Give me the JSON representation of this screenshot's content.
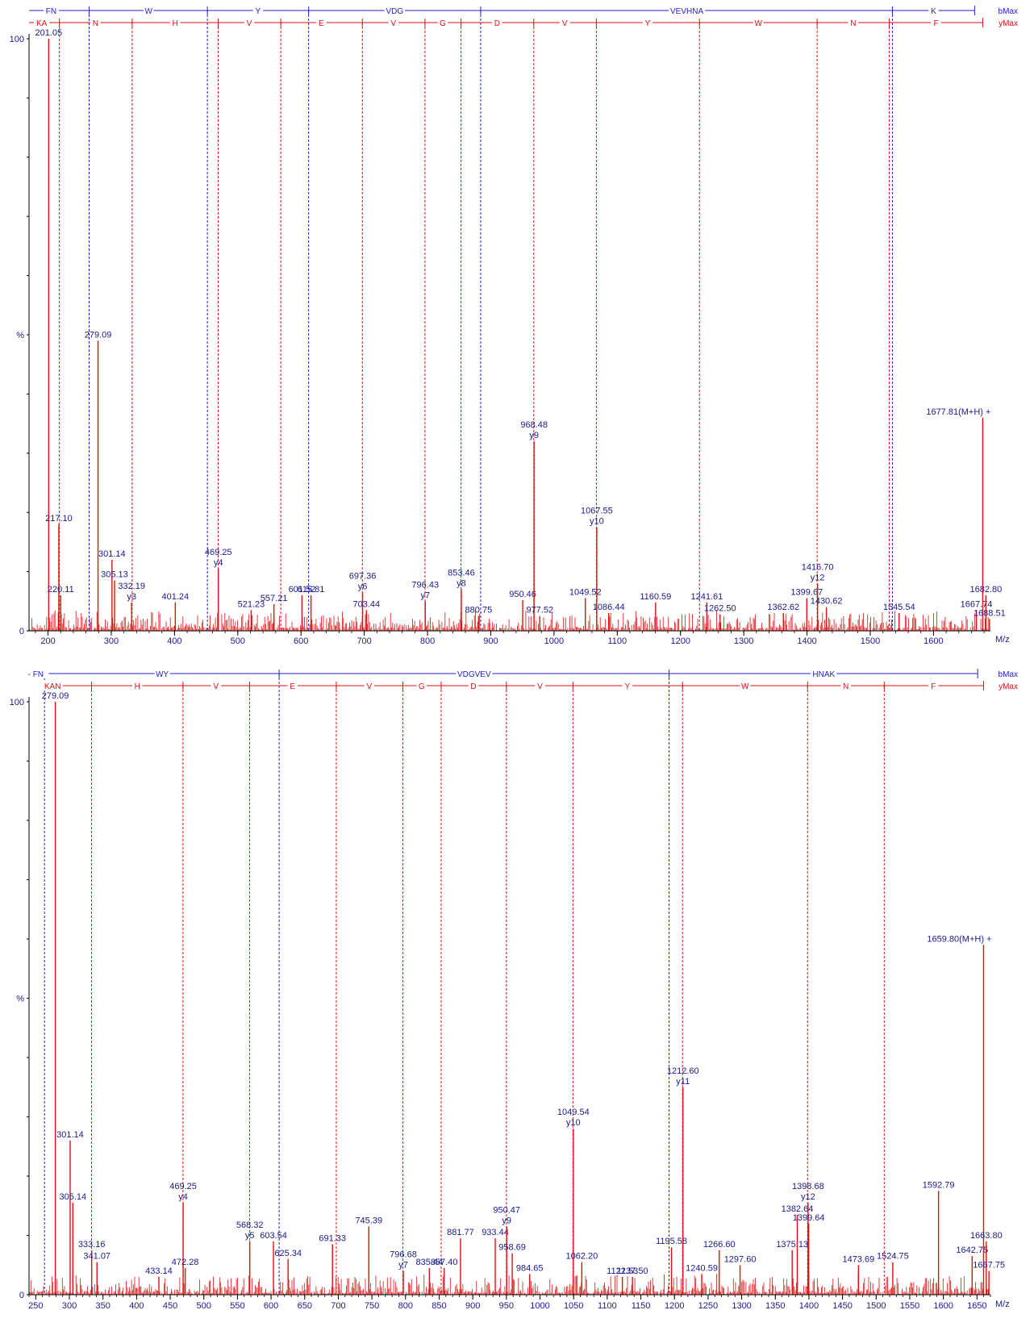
{
  "chart_data": [
    {
      "type": "bar",
      "xlabel": "M/z",
      "ylabel": "%",
      "xlim": [
        170,
        1690
      ],
      "ylim": [
        0,
        100
      ],
      "x_ticks": [
        200,
        300,
        400,
        500,
        600,
        700,
        800,
        900,
        1000,
        1100,
        1200,
        1300,
        1400,
        1500,
        1600
      ],
      "y_ticks": [
        {
          "value": 100,
          "label": "100"
        },
        {
          "value": 50,
          "label": "%"
        },
        {
          "value": 0,
          "label": "0"
        }
      ],
      "ladders": [
        {
          "name": "bMax",
          "color": "#2222cc",
          "start": 170,
          "end": 1665,
          "boundaries": [
            265,
            452,
            612,
            884,
            1535
          ],
          "residues": [
            {
              "x": 205,
              "label": "FN"
            },
            {
              "x": 359,
              "label": "W"
            },
            {
              "x": 532,
              "label": "Y"
            },
            {
              "x": 748,
              "label": "VDG"
            },
            {
              "x": 1210,
              "label": "VEVHNA"
            },
            {
              "x": 1600,
              "label": "K"
            }
          ]
        },
        {
          "name": "yMax",
          "color": "#dd1111",
          "start": 170,
          "end": 1677.81,
          "boundaries": [
            218,
            333,
            469,
            568,
            697,
            796,
            853,
            968,
            1067,
            1230,
            1416,
            1530
          ],
          "residues": [
            {
              "x": 190,
              "label": "KA"
            },
            {
              "x": 275,
              "label": "N"
            },
            {
              "x": 401,
              "label": "H"
            },
            {
              "x": 518,
              "label": "V"
            },
            {
              "x": 632,
              "label": "E"
            },
            {
              "x": 746,
              "label": "V"
            },
            {
              "x": 824,
              "label": "G"
            },
            {
              "x": 910,
              "label": "D"
            },
            {
              "x": 1017,
              "label": "V"
            },
            {
              "x": 1148,
              "label": "Y"
            },
            {
              "x": 1323,
              "label": "W"
            },
            {
              "x": 1473,
              "label": "N"
            },
            {
              "x": 1604,
              "label": "F"
            }
          ]
        }
      ],
      "peaks": [
        {
          "x": 201.05,
          "y": 100,
          "label": "201.05"
        },
        {
          "x": 217.1,
          "y": 18,
          "label": "217.10"
        },
        {
          "x": 220.11,
          "y": 6,
          "label": "220.11"
        },
        {
          "x": 279.09,
          "y": 49,
          "label": "279.09"
        },
        {
          "x": 301.14,
          "y": 12,
          "label": "301.14"
        },
        {
          "x": 305.13,
          "y": 8.5,
          "label": "305.13"
        },
        {
          "x": 332.19,
          "y": 4.8,
          "label": "332.19",
          "ion": "y3"
        },
        {
          "x": 401.24,
          "y": 4.8,
          "label": "401.24"
        },
        {
          "x": 469.25,
          "y": 10.5,
          "label": "469.25",
          "ion": "y4"
        },
        {
          "x": 521.23,
          "y": 3.5,
          "label": "521.23"
        },
        {
          "x": 557.21,
          "y": 4.5,
          "label": "557.21"
        },
        {
          "x": 601.52,
          "y": 6.0,
          "label": "601.52"
        },
        {
          "x": 615.81,
          "y": 6.0,
          "label": "615.81"
        },
        {
          "x": 697.36,
          "y": 6.5,
          "label": "697.36",
          "ion": "y6"
        },
        {
          "x": 703.44,
          "y": 3.5,
          "label": "703.44"
        },
        {
          "x": 796.43,
          "y": 5.0,
          "label": "796.43",
          "ion": "y7"
        },
        {
          "x": 853.46,
          "y": 7.0,
          "label": "853.46",
          "ion": "y8"
        },
        {
          "x": 880.75,
          "y": 2.5,
          "label": "880.75"
        },
        {
          "x": 950.46,
          "y": 5.2,
          "label": "950.46"
        },
        {
          "x": 968.48,
          "y": 32,
          "label": "968.48",
          "ion": "y9"
        },
        {
          "x": 977.52,
          "y": 2.5,
          "label": "977.52"
        },
        {
          "x": 1049.52,
          "y": 5.5,
          "label": "1049.52"
        },
        {
          "x": 1067.55,
          "y": 17.5,
          "label": "1067.55",
          "ion": "y10"
        },
        {
          "x": 1086.44,
          "y": 3.0,
          "label": "1086.44"
        },
        {
          "x": 1160.59,
          "y": 4.8,
          "label": "1160.59"
        },
        {
          "x": 1241.61,
          "y": 4.8,
          "label": "1241.61"
        },
        {
          "x": 1262.5,
          "y": 2.8,
          "label": "1262.50"
        },
        {
          "x": 1362.62,
          "y": 3.0,
          "label": "1362.62"
        },
        {
          "x": 1399.67,
          "y": 5.5,
          "label": "1399.67"
        },
        {
          "x": 1416.7,
          "y": 8,
          "label": "1416.70",
          "ion": "y12"
        },
        {
          "x": 1430.62,
          "y": 4.0,
          "label": "1430.62"
        },
        {
          "x": 1545.54,
          "y": 3.0,
          "label": "1545.54"
        },
        {
          "x": 1667.74,
          "y": 3.5,
          "label": "1667.74"
        },
        {
          "x": 1677.81,
          "y": 36,
          "label": "1677.81(M+H) +"
        },
        {
          "x": 1682.8,
          "y": 6.0,
          "label": "1682.80"
        },
        {
          "x": 1688.51,
          "y": 2.0,
          "label": "1688.51"
        }
      ]
    },
    {
      "type": "bar",
      "xlabel": "M/z",
      "ylabel": "%",
      "xlim": [
        240,
        1670
      ],
      "ylim": [
        0,
        100
      ],
      "x_ticks": [
        250,
        300,
        350,
        400,
        450,
        500,
        550,
        600,
        650,
        700,
        750,
        800,
        850,
        900,
        950,
        1000,
        1050,
        1100,
        1150,
        1200,
        1250,
        1300,
        1350,
        1400,
        1450,
        1500,
        1550,
        1600,
        1650
      ],
      "y_ticks": [
        {
          "value": 100,
          "label": "100"
        },
        {
          "value": 50,
          "label": "%"
        },
        {
          "value": 0,
          "label": "0"
        }
      ],
      "ladders": [
        {
          "name": "bMax",
          "color": "#2222cc",
          "start": 240,
          "end": 1651,
          "boundaries": [
            263,
            612,
            1192
          ],
          "residues": [
            {
              "x": 250,
              "label": "- FN"
            },
            {
              "x": 438,
              "label": "WY"
            },
            {
              "x": 902,
              "label": "VDGVEV"
            },
            {
              "x": 1422,
              "label": "HNAK"
            }
          ]
        },
        {
          "name": "yMax",
          "color": "#dd1111",
          "start": 263,
          "end": 1659.8,
          "boundaries": [
            333,
            469,
            568,
            697,
            796,
            853,
            950,
            1049,
            1212,
            1398,
            1512
          ],
          "residues": [
            {
              "x": 275,
              "label": "KAN"
            },
            {
              "x": 401,
              "label": "H"
            },
            {
              "x": 518,
              "label": "V"
            },
            {
              "x": 632,
              "label": "E"
            },
            {
              "x": 746,
              "label": "V"
            },
            {
              "x": 824,
              "label": "G"
            },
            {
              "x": 901,
              "label": "D"
            },
            {
              "x": 1000,
              "label": "V"
            },
            {
              "x": 1130,
              "label": "Y"
            },
            {
              "x": 1305,
              "label": "W"
            },
            {
              "x": 1455,
              "label": "N"
            },
            {
              "x": 1585,
              "label": "F"
            }
          ]
        }
      ],
      "peaks": [
        {
          "x": 279.09,
          "y": 100,
          "label": "279.09"
        },
        {
          "x": 301.14,
          "y": 26,
          "label": "301.14"
        },
        {
          "x": 305.14,
          "y": 15.5,
          "label": "305.14"
        },
        {
          "x": 333.16,
          "y": 7.5,
          "label": "333.16"
        },
        {
          "x": 341.07,
          "y": 5.5,
          "label": "341.07"
        },
        {
          "x": 433.14,
          "y": 3.0,
          "label": "433.14"
        },
        {
          "x": 469.25,
          "y": 15.5,
          "label": "469.25",
          "ion": "y4"
        },
        {
          "x": 472.28,
          "y": 4.5,
          "label": "472.28"
        },
        {
          "x": 568.32,
          "y": 9.0,
          "label": "568.32",
          "ion": "y5"
        },
        {
          "x": 603.54,
          "y": 9.0,
          "label": "603.54"
        },
        {
          "x": 625.34,
          "y": 6.0,
          "label": "625.34"
        },
        {
          "x": 691.33,
          "y": 8.5,
          "label": "691.33"
        },
        {
          "x": 745.39,
          "y": 11.5,
          "label": "745.39"
        },
        {
          "x": 796.68,
          "y": 4.0,
          "label": "796.68",
          "ion": "y7"
        },
        {
          "x": 835.44,
          "y": 4.5,
          "label": "835.44"
        },
        {
          "x": 857.4,
          "y": 4.5,
          "label": "857.40"
        },
        {
          "x": 881.77,
          "y": 9.5,
          "label": "881.77"
        },
        {
          "x": 933.44,
          "y": 9.5,
          "label": "933.44"
        },
        {
          "x": 950.47,
          "y": 11.5,
          "label": "950.47",
          "ion": "y9"
        },
        {
          "x": 958.69,
          "y": 7,
          "label": "958.69"
        },
        {
          "x": 984.65,
          "y": 3.5,
          "label": "984.65"
        },
        {
          "x": 1049.54,
          "y": 28,
          "label": "1049.54",
          "ion": "y10"
        },
        {
          "x": 1062.2,
          "y": 5.5,
          "label": "1062.20"
        },
        {
          "x": 1122.53,
          "y": 3.0,
          "label": "1122.53"
        },
        {
          "x": 1137.5,
          "y": 3.0,
          "label": "1137.50"
        },
        {
          "x": 1195.58,
          "y": 8.0,
          "label": "1195.58"
        },
        {
          "x": 1212.6,
          "y": 35,
          "label": "1212.60",
          "ion": "y11"
        },
        {
          "x": 1240.59,
          "y": 3.5,
          "label": "1240.59"
        },
        {
          "x": 1266.6,
          "y": 7.5,
          "label": "1266.60"
        },
        {
          "x": 1297.6,
          "y": 5.0,
          "label": "1297.60"
        },
        {
          "x": 1375.13,
          "y": 7.5,
          "label": "1375.13"
        },
        {
          "x": 1382.64,
          "y": 13.5,
          "label": "1382.64"
        },
        {
          "x": 1398.68,
          "y": 15.5,
          "label": "1398.68",
          "ion": "y12"
        },
        {
          "x": 1399.64,
          "y": 12,
          "label": "1399.64"
        },
        {
          "x": 1473.69,
          "y": 5.0,
          "label": "1473.69"
        },
        {
          "x": 1524.75,
          "y": 5.5,
          "label": "1524.75"
        },
        {
          "x": 1592.79,
          "y": 17.5,
          "label": "1592.79"
        },
        {
          "x": 1642.75,
          "y": 6.5,
          "label": "1642.75"
        },
        {
          "x": 1659.8,
          "y": 59,
          "label": "1659.80(M+H) +"
        },
        {
          "x": 1663.8,
          "y": 9.0,
          "label": "1663.80"
        },
        {
          "x": 1667.75,
          "y": 4.0,
          "label": "1667.75"
        }
      ]
    }
  ]
}
